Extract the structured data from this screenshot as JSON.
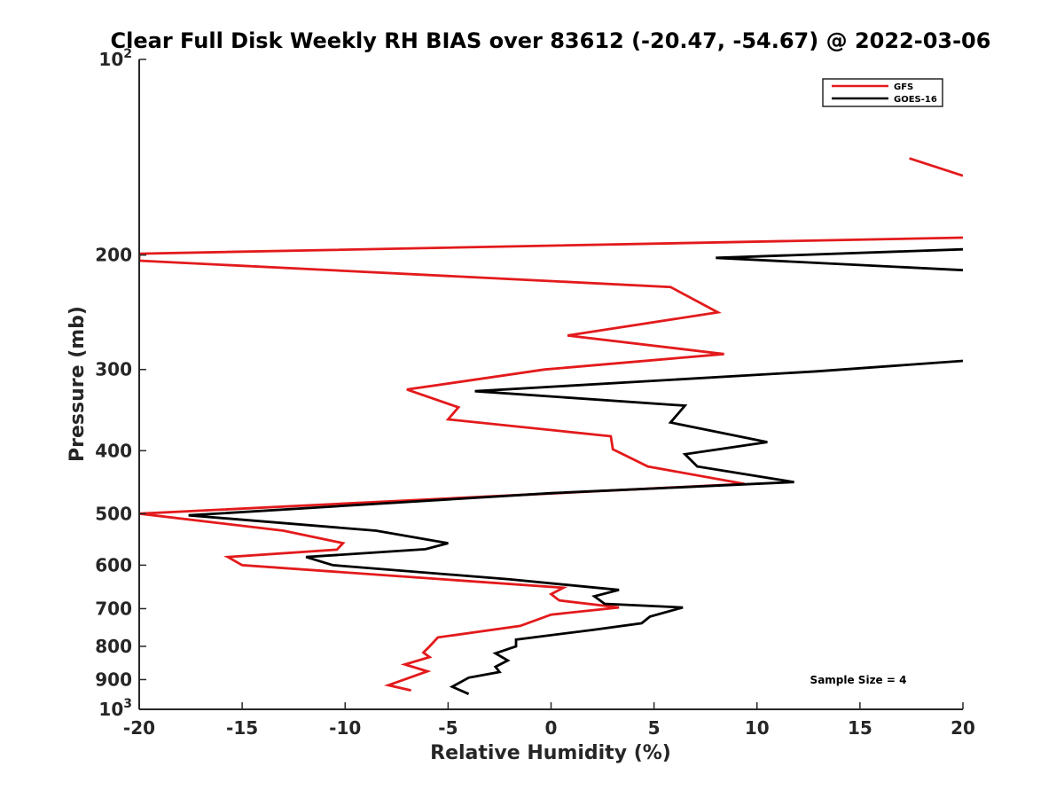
{
  "chart_data": {
    "type": "line",
    "title": "Clear Full Disk Weekly RH BIAS over 83612 (-20.47, -54.67) @ 2022-03-06",
    "xlabel": "Relative Humidity (%)",
    "ylabel": "Pressure (mb)",
    "xlim": [
      -20,
      20
    ],
    "ylim": [
      100,
      1000
    ],
    "y_scale": "log",
    "y_reversed": true,
    "x_ticks": [
      -20,
      -15,
      -10,
      -5,
      0,
      5,
      10,
      15,
      20
    ],
    "x_tick_labels": [
      "-20",
      "-15",
      "-10",
      "-5",
      "0",
      "5",
      "10",
      "15",
      "20"
    ],
    "y_ticks": [
      100,
      200,
      300,
      400,
      500,
      600,
      700,
      800,
      900,
      1000
    ],
    "y_tick_labels": [
      "10^2",
      "200",
      "300",
      "400",
      "500",
      "600",
      "700",
      "800",
      "900",
      "10^3"
    ],
    "grid": false,
    "legend_position": "top-right",
    "annotation": "Sample Size = 4",
    "series": [
      {
        "name": "GFS",
        "color": "#e31a1c",
        "points": [
          [
            17.4,
            142
          ],
          [
            20,
            151
          ],
          [
            null,
            null
          ],
          [
            20,
            188
          ],
          [
            -20,
            199
          ],
          [
            -20,
            204
          ],
          [
            5.8,
            224
          ],
          [
            8.1,
            245
          ],
          [
            0.8,
            266
          ],
          [
            8.4,
            284
          ],
          [
            -0.3,
            300
          ],
          [
            -7,
            322
          ],
          [
            -4.5,
            343
          ],
          [
            -5,
            358
          ],
          [
            2.9,
            380
          ],
          [
            3.0,
            398
          ],
          [
            4.7,
            423
          ],
          [
            9.4,
            450
          ],
          [
            -20,
            500
          ],
          [
            -13,
            531
          ],
          [
            -10.1,
            555
          ],
          [
            -10.4,
            568
          ],
          [
            -15.7,
            583
          ],
          [
            -15,
            600
          ],
          [
            0.6,
            650
          ],
          [
            0,
            665
          ],
          [
            0.4,
            680
          ],
          [
            3.3,
            697
          ],
          [
            0,
            715
          ],
          [
            -1.5,
            744
          ],
          [
            -5.5,
            775
          ],
          [
            -5.9,
            800
          ],
          [
            -6.2,
            818
          ],
          [
            -5.9,
            831
          ],
          [
            -7.1,
            853
          ],
          [
            -6,
            874
          ],
          [
            -7.9,
            918
          ],
          [
            -6.8,
            935
          ]
        ]
      },
      {
        "name": "GOES-16",
        "color": "#000000",
        "points": [
          [
            20,
            196
          ],
          [
            8,
            202
          ],
          [
            20,
            211
          ],
          [
            null,
            null
          ],
          [
            20,
            291
          ],
          [
            12.9,
            302
          ],
          [
            -3.7,
            324
          ],
          [
            6.5,
            341
          ],
          [
            5.8,
            362
          ],
          [
            10.5,
            388
          ],
          [
            6.5,
            405
          ],
          [
            7.1,
            423
          ],
          [
            11.8,
            447
          ],
          [
            0,
            465
          ],
          [
            -17.6,
            503
          ],
          [
            -8.5,
            531
          ],
          [
            -5,
            555
          ],
          [
            -6.1,
            567
          ],
          [
            -11.9,
            583
          ],
          [
            -10.6,
            600
          ],
          [
            -2,
            631
          ],
          [
            3.3,
            655
          ],
          [
            2.1,
            670
          ],
          [
            2.6,
            688
          ],
          [
            6.4,
            697
          ],
          [
            4.8,
            720
          ],
          [
            4.4,
            737
          ],
          [
            2,
            755
          ],
          [
            -1.7,
            781
          ],
          [
            -1.7,
            800
          ],
          [
            -2.7,
            820
          ],
          [
            -2.1,
            841
          ],
          [
            -2.7,
            860
          ],
          [
            -2.5,
            876
          ],
          [
            -4,
            894
          ],
          [
            -4.8,
            923
          ],
          [
            -4,
            947
          ]
        ]
      }
    ]
  }
}
